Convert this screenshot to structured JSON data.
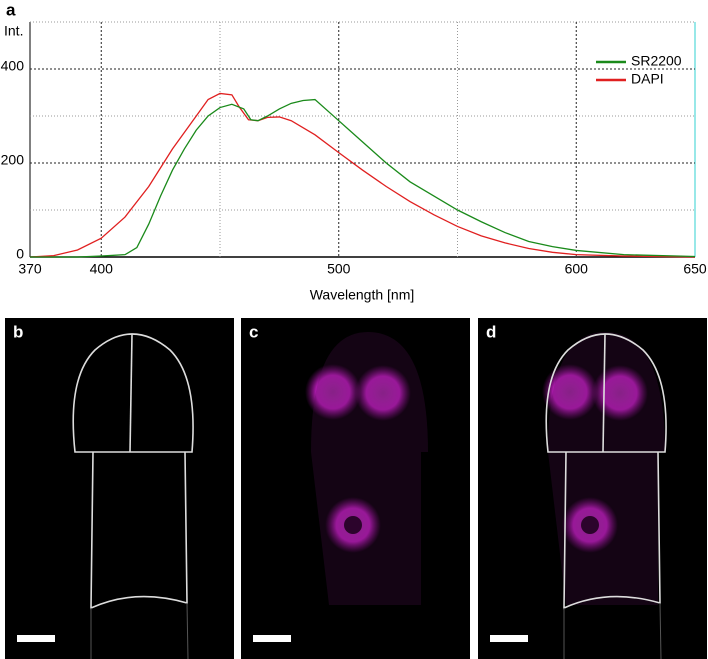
{
  "figure": {
    "panel_labels": [
      "a",
      "b",
      "c",
      "d"
    ]
  },
  "chart_data": {
    "type": "line",
    "y_label": "Int.",
    "x_label": "Wavelength [nm]",
    "xlim": [
      370,
      650
    ],
    "xticks": [
      370,
      400,
      500,
      600,
      650
    ],
    "x_minor_ticks": [
      450,
      550
    ],
    "ylim": [
      0,
      500
    ],
    "yticks": [
      0,
      200,
      400
    ],
    "y_minor_ticks": [
      100,
      300,
      500
    ],
    "grid": true,
    "legend": "upper right",
    "series": [
      {
        "name": "SR2200",
        "color": "#1a8a1a",
        "x": [
          370,
          390,
          400,
          410,
          415,
          420,
          425,
          430,
          435,
          440,
          445,
          450,
          455,
          460,
          463,
          466,
          470,
          475,
          480,
          485,
          490,
          500,
          510,
          520,
          530,
          540,
          550,
          560,
          570,
          580,
          590,
          600,
          620,
          650
        ],
        "values": [
          0,
          0,
          2,
          5,
          20,
          70,
          130,
          185,
          230,
          270,
          300,
          318,
          325,
          315,
          292,
          290,
          300,
          315,
          327,
          333,
          335,
          290,
          245,
          200,
          160,
          130,
          100,
          75,
          52,
          33,
          22,
          14,
          5,
          1
        ]
      },
      {
        "name": "DAPI",
        "color": "#e02020",
        "x": [
          370,
          380,
          390,
          400,
          410,
          420,
          430,
          440,
          445,
          450,
          455,
          458,
          462,
          466,
          470,
          475,
          480,
          490,
          500,
          510,
          520,
          530,
          540,
          550,
          560,
          570,
          580,
          590,
          600,
          620,
          650
        ],
        "values": [
          0,
          3,
          15,
          40,
          85,
          150,
          230,
          300,
          335,
          348,
          345,
          320,
          292,
          290,
          297,
          298,
          290,
          260,
          222,
          185,
          150,
          118,
          90,
          65,
          45,
          30,
          18,
          10,
          5,
          2,
          0
        ]
      }
    ]
  }
}
